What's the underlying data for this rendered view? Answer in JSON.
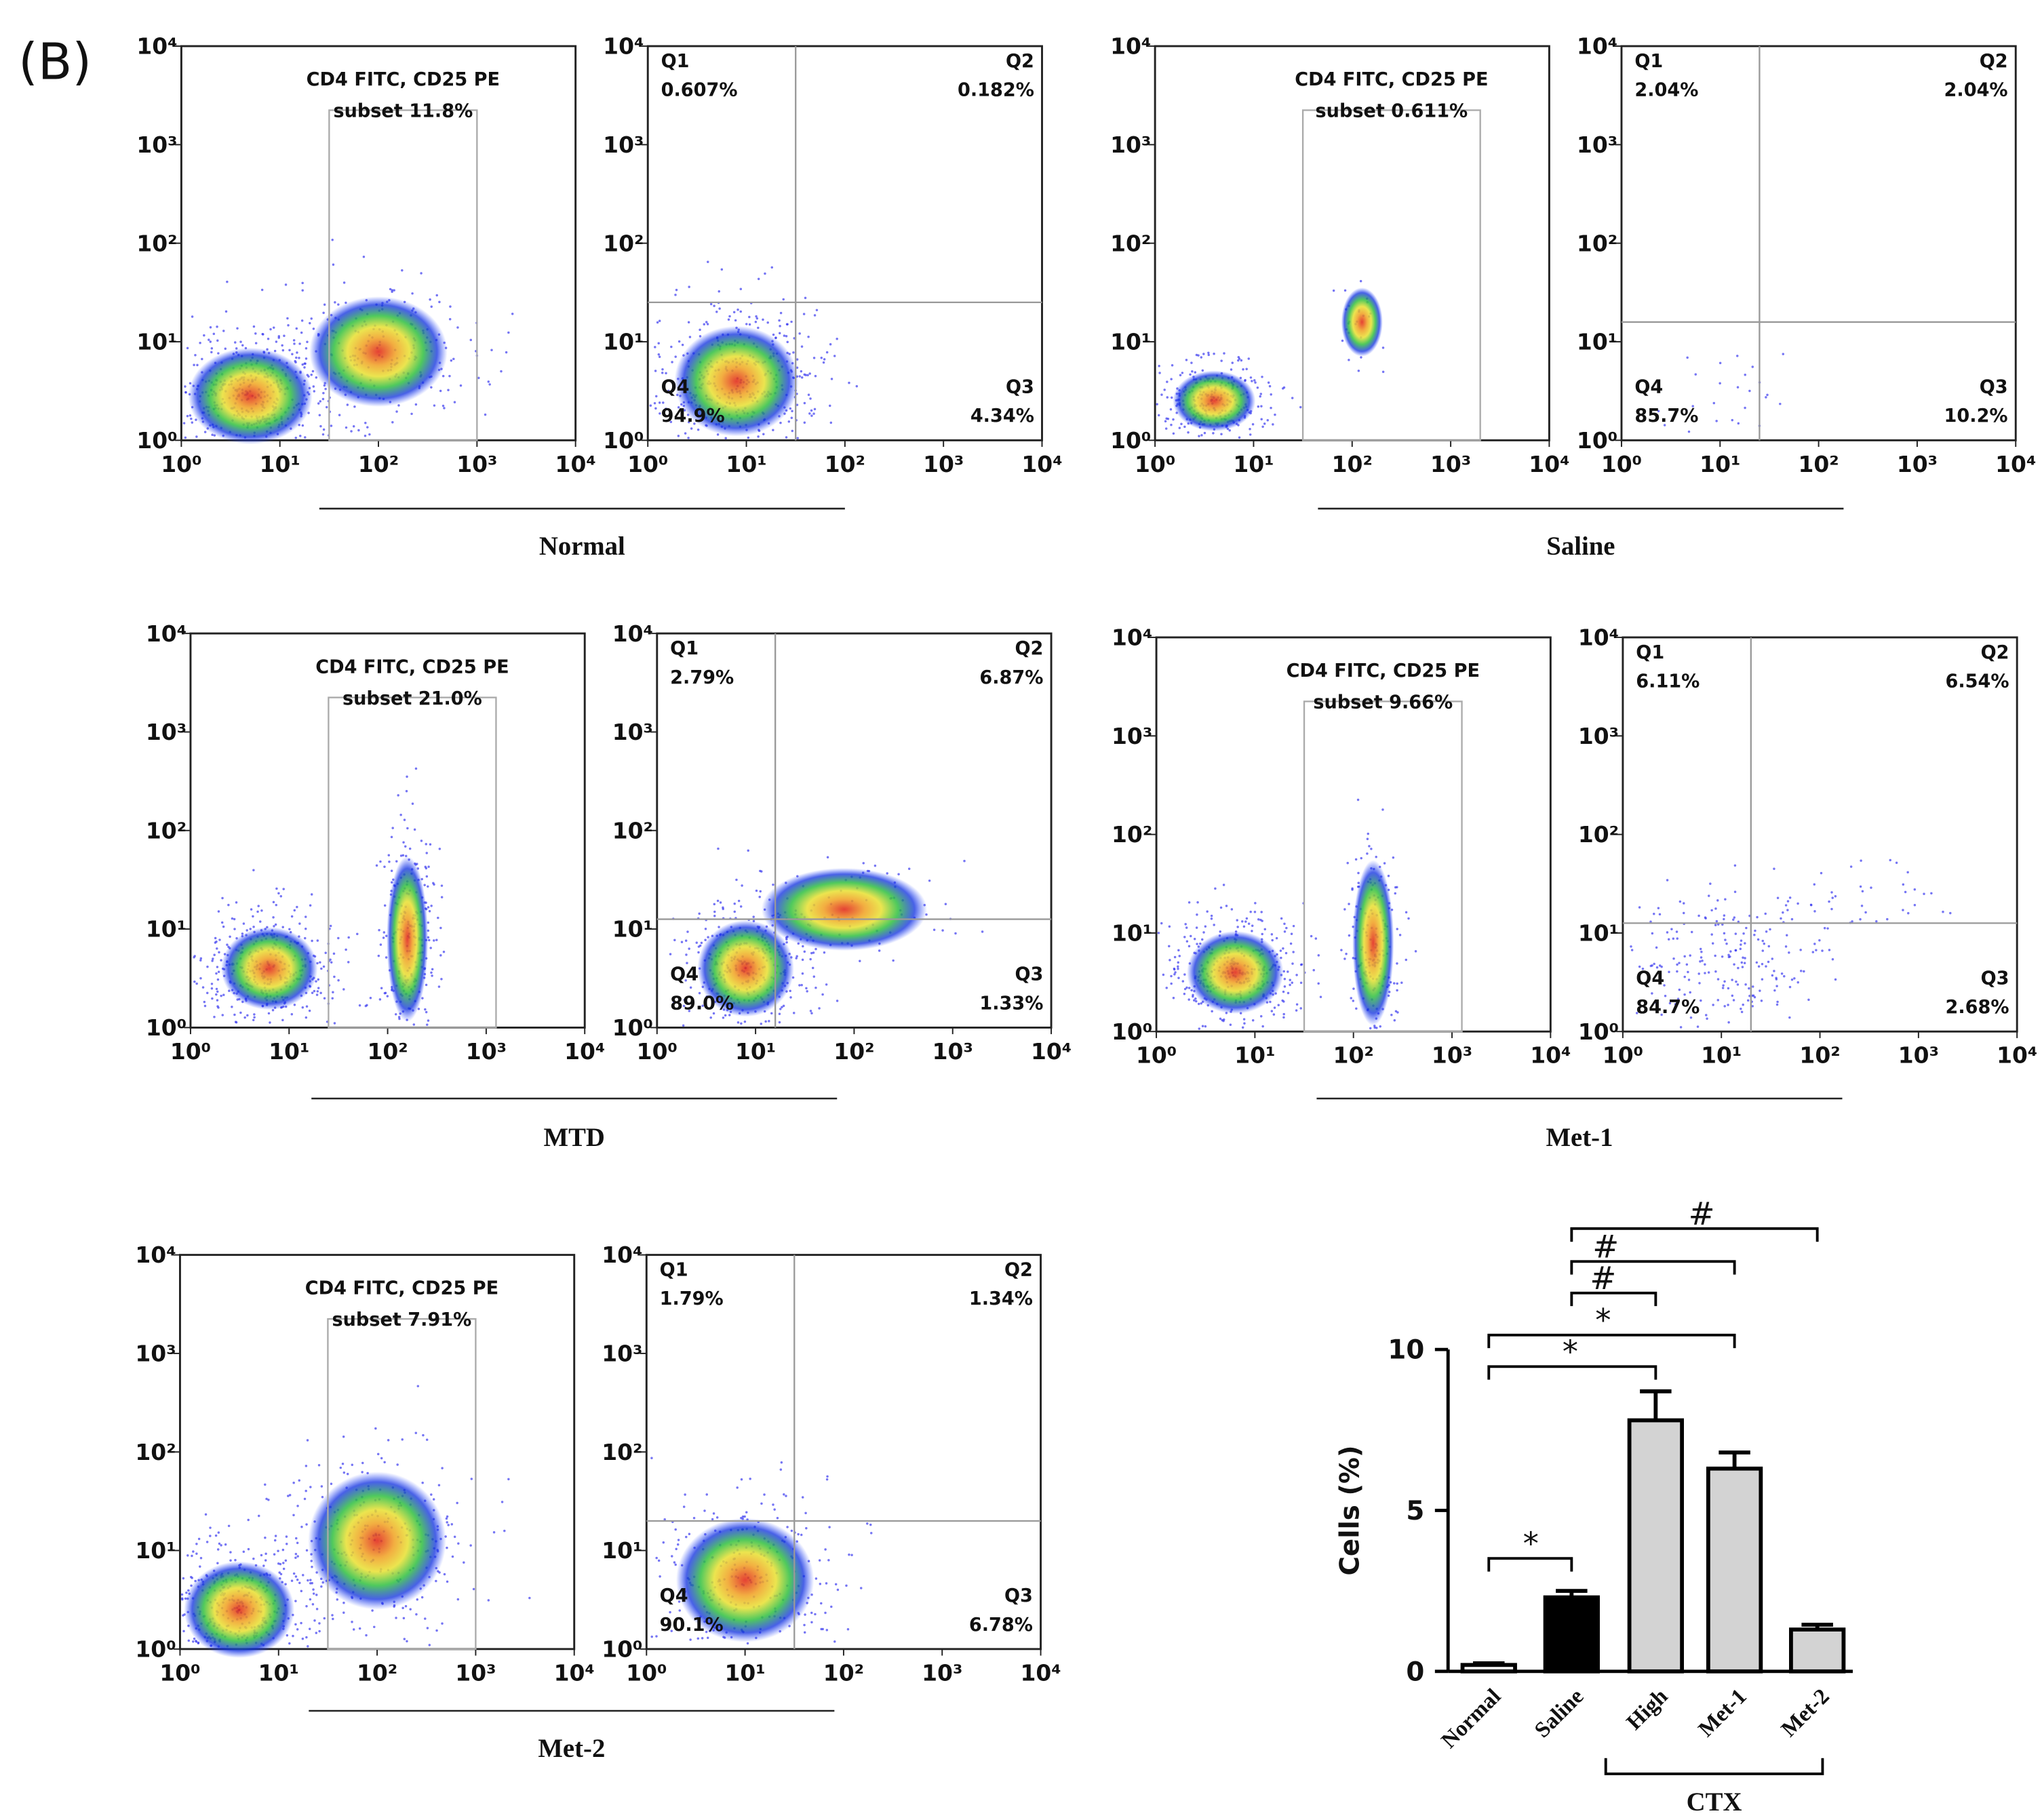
{
  "panel_label": "(B)",
  "flow_ticks": [
    {
      "value": 1,
      "label": "10⁰"
    },
    {
      "value": 10,
      "label": "10¹"
    },
    {
      "value": 100,
      "label": "10²"
    },
    {
      "value": 1000,
      "label": "10³"
    },
    {
      "value": 10000,
      "label": "10⁴"
    }
  ],
  "groups": [
    {
      "name": "Normal",
      "gate": {
        "title": "CD4 FITC, CD25 PE",
        "subset": "subset 11.8%"
      },
      "quadrants": [
        {
          "name": "Q1",
          "value": "0.607%"
        },
        {
          "name": "Q2",
          "value": "0.182%"
        },
        {
          "name": "Q3",
          "value": "4.34%"
        },
        {
          "name": "Q4",
          "value": "94.9%"
        }
      ]
    },
    {
      "name": "Saline",
      "gate": {
        "title": "CD4 FITC, CD25 PE",
        "subset": "subset 0.611%"
      },
      "quadrants": [
        {
          "name": "Q1",
          "value": "2.04%"
        },
        {
          "name": "Q2",
          "value": "2.04%"
        },
        {
          "name": "Q3",
          "value": "10.2%"
        },
        {
          "name": "Q4",
          "value": "85.7%"
        }
      ]
    },
    {
      "name": "MTD",
      "gate": {
        "title": "CD4 FITC, CD25 PE",
        "subset": "subset 21.0%"
      },
      "quadrants": [
        {
          "name": "Q1",
          "value": "2.79%"
        },
        {
          "name": "Q2",
          "value": "6.87%"
        },
        {
          "name": "Q3",
          "value": "1.33%"
        },
        {
          "name": "Q4",
          "value": "89.0%"
        }
      ]
    },
    {
      "name": "Met-1",
      "gate": {
        "title": "CD4 FITC, CD25 PE",
        "subset": "subset 9.66%"
      },
      "quadrants": [
        {
          "name": "Q1",
          "value": "6.11%"
        },
        {
          "name": "Q2",
          "value": "6.54%"
        },
        {
          "name": "Q3",
          "value": "2.68%"
        },
        {
          "name": "Q4",
          "value": "84.7%"
        }
      ]
    },
    {
      "name": "Met-2",
      "gate": {
        "title": "CD4 FITC, CD25 PE",
        "subset": "subset 7.91%"
      },
      "quadrants": [
        {
          "name": "Q1",
          "value": "1.79%"
        },
        {
          "name": "Q2",
          "value": "1.34%"
        },
        {
          "name": "Q3",
          "value": "6.78%"
        },
        {
          "name": "Q4",
          "value": "90.1%"
        }
      ]
    }
  ],
  "chart_data": {
    "type": "bar",
    "ylabel": "Cells (%)",
    "categories": [
      "Normal",
      "Saline",
      "High",
      "Met-1",
      "Met-2"
    ],
    "values": [
      0.2,
      2.3,
      7.8,
      6.3,
      1.3
    ],
    "errors": [
      0.05,
      0.2,
      0.9,
      0.5,
      0.15
    ],
    "colors": [
      "#ffffff",
      "#000000",
      "#d3d3d3",
      "#d3d3d3",
      "#d3d3d3"
    ],
    "ylim": [
      0,
      10
    ],
    "yticks": [
      0,
      5,
      10
    ],
    "group_label": {
      "label": "CTX",
      "from": "High",
      "to": "Met-2"
    },
    "annotations": [
      {
        "label": "*",
        "from": "Normal",
        "to": "Saline"
      },
      {
        "label": "*",
        "from": "Normal",
        "to": "High"
      },
      {
        "label": "*",
        "from": "Normal",
        "to": "Met-1"
      },
      {
        "label": "#",
        "from": "Saline",
        "to": "High"
      },
      {
        "label": "#",
        "from": "Saline",
        "to": "Met-1"
      },
      {
        "label": "#",
        "from": "Saline",
        "to": "Met-2"
      }
    ]
  }
}
